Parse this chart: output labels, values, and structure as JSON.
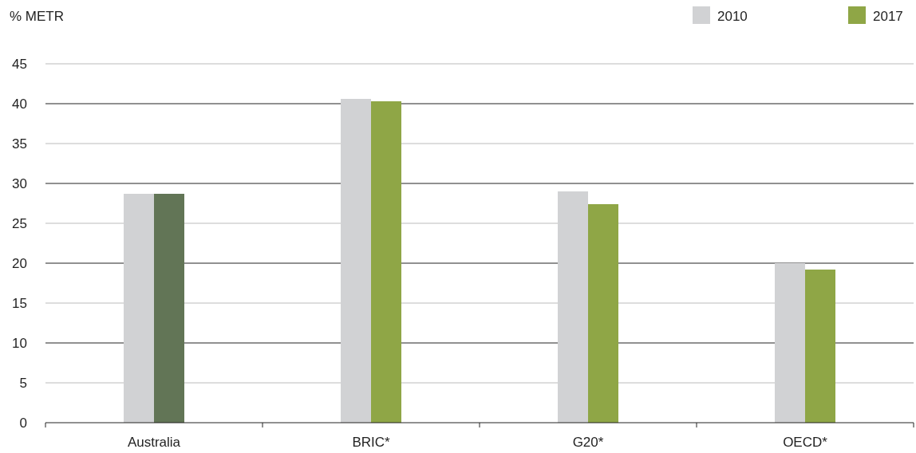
{
  "chart_data": {
    "type": "bar",
    "ylabel": "% METR",
    "categories": [
      "Australia",
      "BRIC*",
      "G20*",
      "OECD*"
    ],
    "series": [
      {
        "name": "2010",
        "color": "#d1d2d4",
        "values": [
          28.7,
          40.6,
          29.0,
          20.0
        ]
      },
      {
        "name": "2017",
        "color": "#8fa646",
        "colors": [
          "#627556",
          "#8fa646",
          "#8fa646",
          "#8fa646"
        ],
        "values": [
          28.7,
          40.3,
          27.4,
          19.2
        ]
      }
    ],
    "ylim": [
      0,
      45
    ],
    "yticks": [
      0,
      5,
      10,
      15,
      20,
      25,
      30,
      35,
      40,
      45
    ],
    "grid": "y",
    "legend": "top right"
  }
}
